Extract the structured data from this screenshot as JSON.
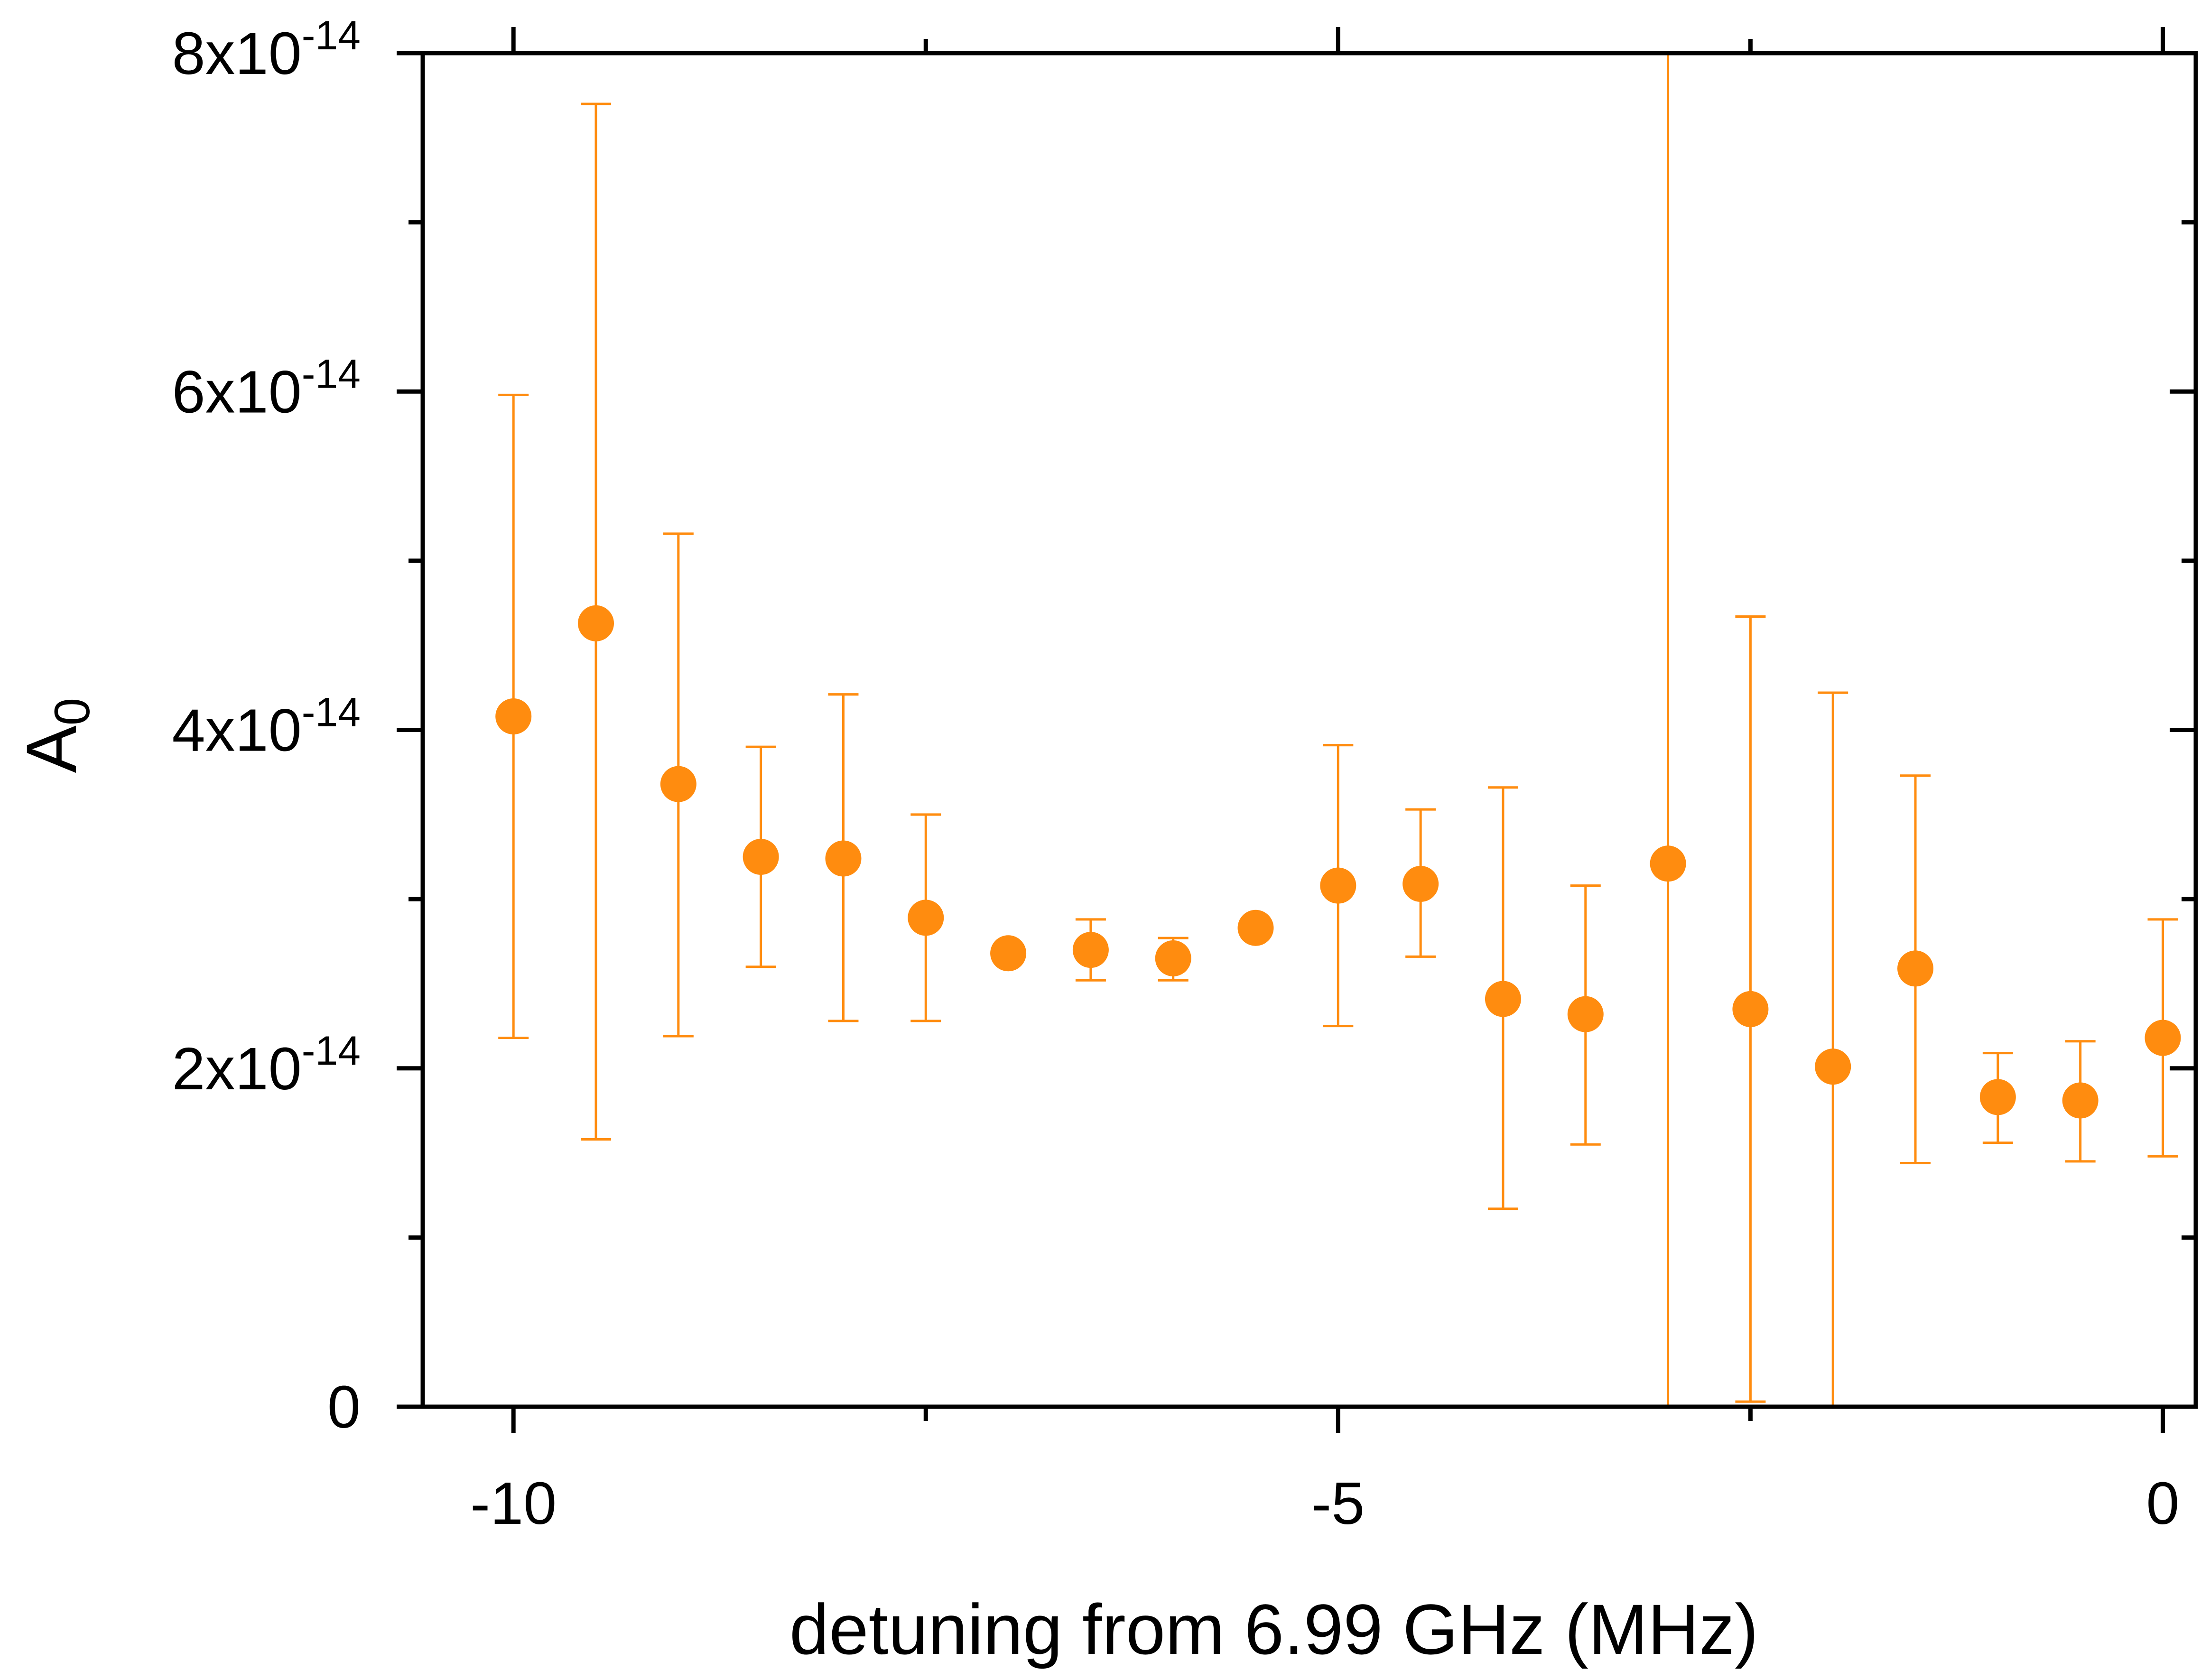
{
  "chart_data": {
    "type": "scatter",
    "title": "",
    "xlabel": "detuning from 6.99 GHz (MHz)",
    "ylabel": {
      "base": "A",
      "subscript": "0"
    },
    "xlim": [
      -10.55,
      0.2
    ],
    "ylim": [
      0,
      8e-14
    ],
    "grid": false,
    "legend": null,
    "marker_color": "#FF8C0F",
    "x_ticks": [
      {
        "value": -10,
        "label": "-10"
      },
      {
        "value": -5,
        "label": "-5"
      },
      {
        "value": 0,
        "label": "0"
      }
    ],
    "x_minor_ticks": [
      -7.5,
      -2.5
    ],
    "y_ticks": [
      {
        "value": 0,
        "mantissa": "0",
        "exponent": ""
      },
      {
        "value": 2e-14,
        "mantissa": "2x10",
        "exponent": "-14"
      },
      {
        "value": 4e-14,
        "mantissa": "4x10",
        "exponent": "-14"
      },
      {
        "value": 6e-14,
        "mantissa": "6x10",
        "exponent": "-14"
      },
      {
        "value": 8e-14,
        "mantissa": "8x10",
        "exponent": "-14"
      }
    ],
    "y_minor_ticks": [
      1e-14,
      3e-14,
      5e-14,
      7e-14
    ],
    "series": [
      {
        "name": "A0",
        "points": [
          {
            "x": -10.0,
            "y": 4.08e-14,
            "yerr_low": 2.18e-14,
            "yerr_high": 5.98e-14
          },
          {
            "x": -9.5,
            "y": 4.63e-14,
            "yerr_low": 1.58e-14,
            "yerr_high": 7.7e-14
          },
          {
            "x": -9.0,
            "y": 3.68e-14,
            "yerr_low": 2.19e-14,
            "yerr_high": 5.16e-14
          },
          {
            "x": -8.5,
            "y": 3.25e-14,
            "yerr_low": 2.6e-14,
            "yerr_high": 3.9e-14
          },
          {
            "x": -8.0,
            "y": 3.24e-14,
            "yerr_low": 2.28e-14,
            "yerr_high": 4.21e-14
          },
          {
            "x": -7.5,
            "y": 2.89e-14,
            "yerr_low": 2.28e-14,
            "yerr_high": 3.5e-14
          },
          {
            "x": -7.0,
            "y": 2.68e-14,
            "yerr_low": 2.65e-14,
            "yerr_high": 2.71e-14
          },
          {
            "x": -6.5,
            "y": 2.7e-14,
            "yerr_low": 2.52e-14,
            "yerr_high": 2.88e-14
          },
          {
            "x": -6.0,
            "y": 2.65e-14,
            "yerr_low": 2.52e-14,
            "yerr_high": 2.77e-14
          },
          {
            "x": -5.5,
            "y": 2.83e-14,
            "yerr_low": 2.79e-14,
            "yerr_high": 2.87e-14
          },
          {
            "x": -5.0,
            "y": 3.08e-14,
            "yerr_low": 2.25e-14,
            "yerr_high": 3.91e-14
          },
          {
            "x": -4.5,
            "y": 3.09e-14,
            "yerr_low": 2.66e-14,
            "yerr_high": 3.53e-14
          },
          {
            "x": -4.0,
            "y": 2.41e-14,
            "yerr_low": 1.17e-14,
            "yerr_high": 3.66e-14
          },
          {
            "x": -3.5,
            "y": 2.32e-14,
            "yerr_low": 1.55e-14,
            "yerr_high": 3.08e-14
          },
          {
            "x": -3.0,
            "y": 3.21e-14,
            "yerr_low": 0.0,
            "yerr_high": 8e-14
          },
          {
            "x": -2.5,
            "y": 2.35e-14,
            "yerr_low": 3e-16,
            "yerr_high": 4.67e-14
          },
          {
            "x": -2.0,
            "y": 2.01e-14,
            "yerr_low": 0.0,
            "yerr_high": 4.22e-14
          },
          {
            "x": -1.5,
            "y": 2.59e-14,
            "yerr_low": 1.44e-14,
            "yerr_high": 3.73e-14
          },
          {
            "x": -1.0,
            "y": 1.83e-14,
            "yerr_low": 1.56e-14,
            "yerr_high": 2.09e-14
          },
          {
            "x": -0.5,
            "y": 1.81e-14,
            "yerr_low": 1.45e-14,
            "yerr_high": 2.16e-14
          },
          {
            "x": 0.0,
            "y": 2.18e-14,
            "yerr_low": 1.48e-14,
            "yerr_high": 2.88e-14
          }
        ]
      }
    ]
  }
}
